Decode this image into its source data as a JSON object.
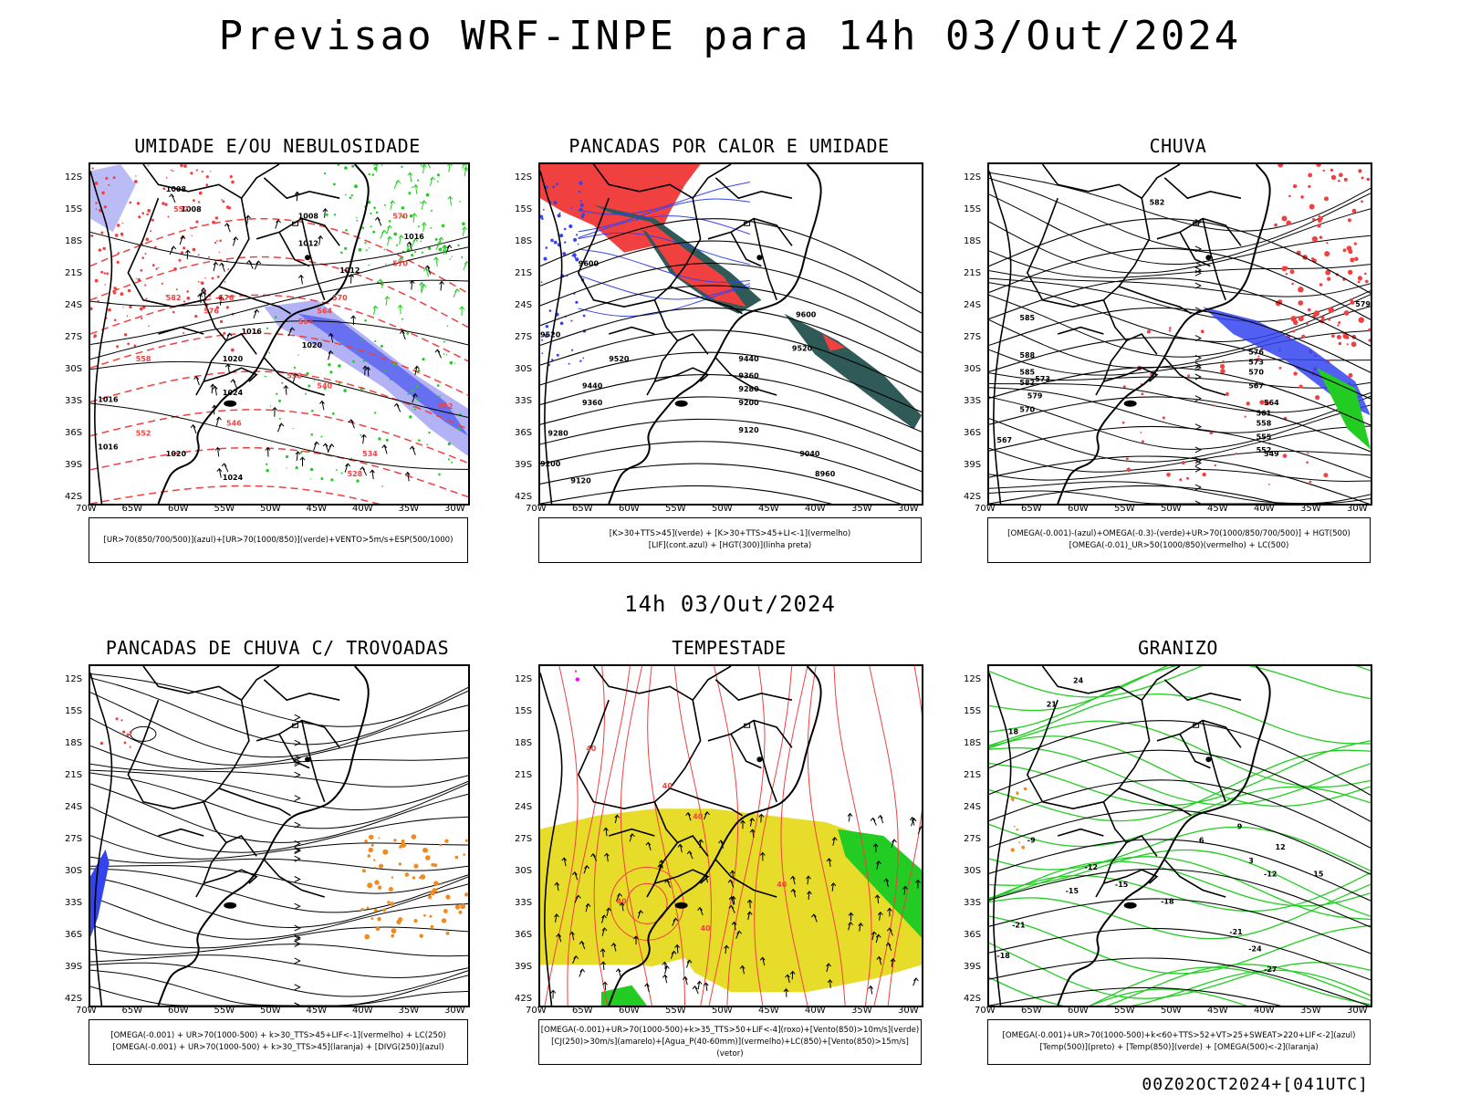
{
  "title": "Previsao WRF-INPE  para 14h 03/Out/2024",
  "mid_label": "14h 03/Out/2024",
  "footer": "00Z02OCT2024+[041UTC]",
  "lat_ticks": [
    "12S",
    "15S",
    "18S",
    "21S",
    "24S",
    "27S",
    "30S",
    "33S",
    "36S",
    "39S",
    "42S"
  ],
  "lon_ticks": [
    "70W",
    "65W",
    "60W",
    "55W",
    "50W",
    "45W",
    "40W",
    "35W",
    "30W"
  ],
  "colors": {
    "red": "#f04040",
    "green": "#22cc22",
    "blue": "#3344ee",
    "lilac": "#aaaaf4",
    "teal": "#2f5a58",
    "yellow": "#e8dc2a",
    "orange": "#f08a20",
    "magenta": "#ff00ff"
  },
  "panels": [
    {
      "title": "UMIDADE E/OU NEBULOSIDADE",
      "legend": [
        "[UR>70(850/700/500)](azul)+[UR>70(1000/850)](verde)+VENTO>5m/s+ESP(500/1000)"
      ],
      "contour_labels": [
        "1008",
        "1008",
        "1008",
        "1012",
        "1012",
        "1016",
        "1016",
        "1020",
        "1020",
        "1024",
        "1016",
        "1016",
        "1020",
        "1024"
      ],
      "thickness_labels": [
        "552",
        "570",
        "576",
        "558",
        "564",
        "564",
        "570",
        "576",
        "582",
        "546",
        "552",
        "558",
        "534",
        "540",
        "528",
        "552",
        "570"
      ]
    },
    {
      "title": "PANCADAS POR CALOR E UMIDADE",
      "legend": [
        "[K>30+TTS>45](verde) + [K>30+TTS>45+LI<-1](vermelho)",
        "[LIF](cont.azul) + [HGT(300)](linha preta)"
      ],
      "contour_labels": [
        "9600",
        "9600",
        "9520",
        "9520",
        "9520",
        "9440",
        "9440",
        "9360",
        "9360",
        "9280",
        "9280",
        "9200",
        "9200",
        "9120",
        "9120",
        "9040",
        "8960"
      ]
    },
    {
      "title": "CHUVA",
      "legend": [
        "[OMEGA(-0.001)-(azul)+OMEGA(-0.3)-(verde)+UR>70(1000/850/700/500)] + HGT(500)",
        "[OMEGA(-0.01)_UR>50(1000/850)(vermelho) + LC(500)"
      ],
      "contour_labels": [
        "585",
        "588",
        "585",
        "582",
        "579",
        "576",
        "573",
        "570",
        "567",
        "564",
        "561",
        "558",
        "555",
        "552",
        "549",
        "567",
        "570",
        "573",
        "579",
        "582"
      ]
    },
    {
      "title": "PANCADAS DE CHUVA C/ TROVOADAS",
      "legend": [
        "[OMEGA(-0.001) + UR>70(1000-500) + k>30_TTS>45+LIF<-1](vermelho) + LC(250)",
        "[OMEGA(-0.001) + UR>70(1000-500) + k>30_TTS>45](laranja) + [DIVG(250)](azul)"
      ]
    },
    {
      "title": "TEMPESTADE",
      "legend": [
        "[OMEGA(-0.001)+UR>70(1000-500)+k>35_TTS>50+LIF<-4](roxo)+[Vento(850)>10m/s](verde)",
        "[CJ(250)>30m/s](amarelo)+[Agua_P(40-60mm)](vermelho)+LC(850)+[Vento(850)>15m/s](vetor)"
      ],
      "contour_labels": [
        "40",
        "40",
        "40",
        "40",
        "40",
        "40"
      ]
    },
    {
      "title": "GRANIZO",
      "legend": [
        "[OMEGA(-0.001)+UR>70(1000-500)+k<60+TTS>52+VT>25+SWEAT>220+LIF<-2](azul)",
        "[Temp(500)](preto) + [Temp(850)](verde) + [OMEGA(500)<-2](laranja)"
      ],
      "contour_labels": [
        "-9",
        "-12",
        "-15",
        "-18",
        "-21",
        "-24",
        "-27",
        "-18",
        "-21",
        "-15",
        "-12",
        "3",
        "6",
        "9",
        "12",
        "15",
        "18",
        "21",
        "24"
      ]
    }
  ]
}
